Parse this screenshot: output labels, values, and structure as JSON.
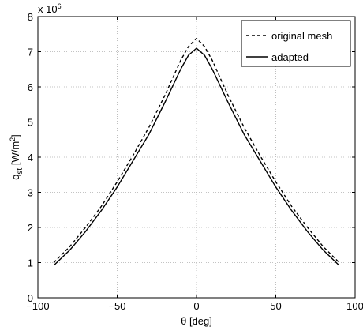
{
  "chart_data": {
    "type": "line",
    "xlabel": "θ [deg]",
    "ylabel_main": "q",
    "ylabel_sub": "st",
    "ylabel_unit_pre": " [W/m",
    "ylabel_unit_sup": "2",
    "ylabel_unit_post": "]",
    "y_multiplier_base": "x 10",
    "y_multiplier_exp": "6",
    "xlim": [
      -100,
      100
    ],
    "ylim": [
      0,
      8
    ],
    "xticks": [
      -100,
      -50,
      0,
      50,
      100
    ],
    "xtick_labels": [
      "−100",
      "−50",
      "0",
      "50",
      "100"
    ],
    "yticks": [
      0,
      1,
      2,
      3,
      4,
      5,
      6,
      7,
      8
    ],
    "ytick_labels": [
      "0",
      "1",
      "2",
      "3",
      "4",
      "5",
      "6",
      "7",
      "8"
    ],
    "grid": true,
    "legend_position": "top-right",
    "series": [
      {
        "name": "original mesh",
        "style": "dashed",
        "color": "#000000",
        "x": [
          -90,
          -80,
          -70,
          -60,
          -50,
          -40,
          -30,
          -20,
          -10,
          -5,
          0,
          5,
          10,
          20,
          30,
          40,
          50,
          60,
          70,
          80,
          90
        ],
        "y": [
          1.0,
          1.45,
          2.0,
          2.6,
          3.3,
          4.05,
          4.85,
          5.75,
          6.75,
          7.15,
          7.38,
          7.15,
          6.75,
          5.75,
          4.85,
          4.05,
          3.3,
          2.6,
          2.0,
          1.45,
          1.0
        ]
      },
      {
        "name": "adapted",
        "style": "solid",
        "color": "#000000",
        "x": [
          -90,
          -80,
          -70,
          -60,
          -50,
          -40,
          -30,
          -20,
          -10,
          -5,
          0,
          5,
          10,
          20,
          30,
          40,
          50,
          60,
          70,
          80,
          90
        ],
        "y": [
          0.92,
          1.35,
          1.88,
          2.48,
          3.15,
          3.9,
          4.65,
          5.55,
          6.5,
          6.9,
          7.1,
          6.9,
          6.5,
          5.55,
          4.65,
          3.9,
          3.15,
          2.48,
          1.88,
          1.35,
          0.92
        ]
      }
    ]
  }
}
